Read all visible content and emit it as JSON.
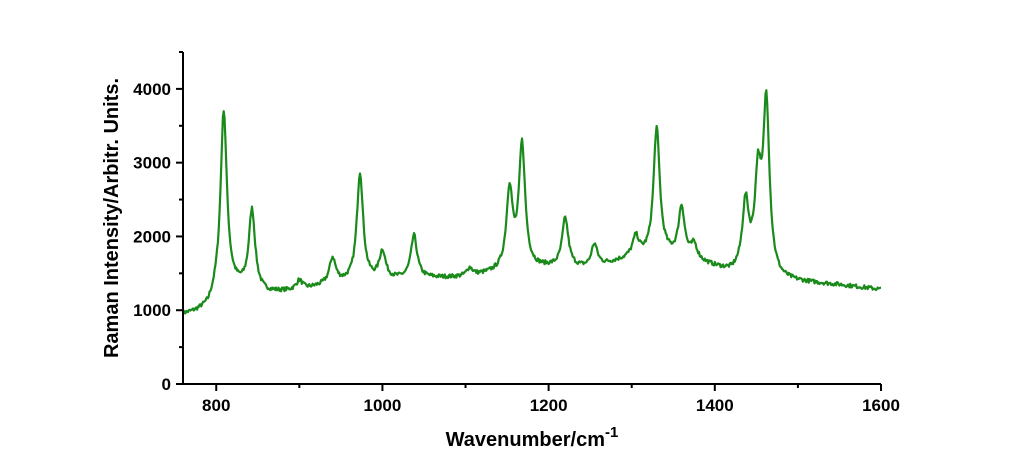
{
  "chart_data": {
    "type": "line",
    "title": "",
    "xlabel": "Wavenumber/cm",
    "xlabel_superscript": "-1",
    "ylabel": "Raman Intensity/Arbitr. Units.",
    "xlim": [
      760,
      1600
    ],
    "ylim": [
      0,
      4500
    ],
    "x_ticks": [
      800,
      1000,
      1200,
      1400,
      1600
    ],
    "y_ticks": [
      0,
      1000,
      2000,
      3000,
      4000
    ],
    "x_minor_step": 100,
    "y_minor_step": 500,
    "grid": false,
    "legend": "none",
    "series_color": "#1a8a1a",
    "baseline": [
      [
        760,
        940
      ],
      [
        775,
        970
      ],
      [
        790,
        1030
      ],
      [
        800,
        1200
      ],
      [
        815,
        1300
      ],
      [
        830,
        1290
      ],
      [
        860,
        1230
      ],
      [
        900,
        1260
      ],
      [
        940,
        1350
      ],
      [
        1000,
        1400
      ],
      [
        1050,
        1430
      ],
      [
        1100,
        1440
      ],
      [
        1150,
        1520
      ],
      [
        1200,
        1570
      ],
      [
        1250,
        1560
      ],
      [
        1300,
        1700
      ],
      [
        1340,
        1730
      ],
      [
        1380,
        1640
      ],
      [
        1420,
        1500
      ],
      [
        1440,
        1550
      ],
      [
        1480,
        1400
      ],
      [
        1500,
        1380
      ],
      [
        1550,
        1340
      ],
      [
        1600,
        1280
      ]
    ],
    "peaks": [
      {
        "x": 809,
        "intensity": 3700
      },
      {
        "x": 843,
        "intensity": 2340
      },
      {
        "x": 900,
        "intensity": 1390
      },
      {
        "x": 940,
        "intensity": 1690
      },
      {
        "x": 973,
        "intensity": 2850
      },
      {
        "x": 1000,
        "intensity": 1780
      },
      {
        "x": 1038,
        "intensity": 2000
      },
      {
        "x": 1105,
        "intensity": 1560
      },
      {
        "x": 1153,
        "intensity": 2600
      },
      {
        "x": 1168,
        "intensity": 3210
      },
      {
        "x": 1220,
        "intensity": 2230
      },
      {
        "x": 1255,
        "intensity": 1880
      },
      {
        "x": 1305,
        "intensity": 1970
      },
      {
        "x": 1330,
        "intensity": 3450
      },
      {
        "x": 1360,
        "intensity": 2370
      },
      {
        "x": 1375,
        "intensity": 1850
      },
      {
        "x": 1437,
        "intensity": 2410
      },
      {
        "x": 1452,
        "intensity": 2700
      },
      {
        "x": 1462,
        "intensity": 3750
      }
    ]
  }
}
